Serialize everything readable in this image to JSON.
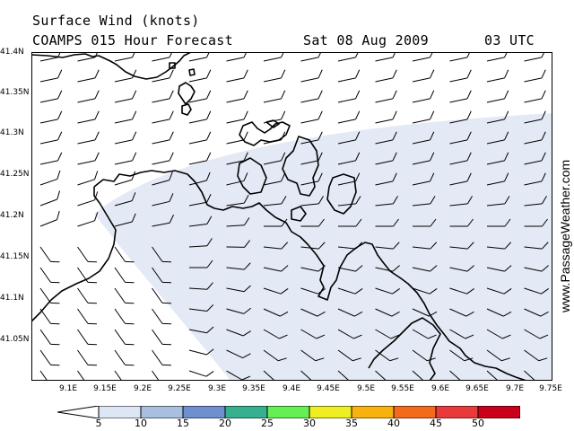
{
  "header": {
    "title": "Surface Wind (knots)",
    "model": "COAMPS 015 Hour Forecast",
    "date": "Sat 08 Aug 2009",
    "time": "03 UTC"
  },
  "watermark": "www.PassageWeather.com",
  "map": {
    "lat_labels": [
      "41.4N",
      "41.35N",
      "41.3N",
      "41.25N",
      "41.2N",
      "41.15N",
      "41.1N",
      "41.05N"
    ],
    "lon_labels": [
      "9.1E",
      "9.15E",
      "9.2E",
      "9.25E",
      "9.3E",
      "9.35E",
      "9.4E",
      "9.45E",
      "9.5E",
      "9.55E",
      "9.6E",
      "9.65E",
      "9.7E",
      "9.75E"
    ],
    "wind_field": "light winds 0-10 knots, mostly westerly barbs with short feathers",
    "shaded_band_color": "#e3e9f5",
    "land_outline_color": "#000000"
  },
  "legend": {
    "labels": [
      "5",
      "10",
      "15",
      "20",
      "25",
      "30",
      "35",
      "40",
      "45",
      "50"
    ],
    "colors": [
      "#ffffff",
      "#dde6f4",
      "#a9bfe0",
      "#6f90cf",
      "#37b08f",
      "#66ee55",
      "#eeee22",
      "#f7b20f",
      "#f36a1d",
      "#e83a3a",
      "#c8001a",
      "#e01ec9"
    ]
  }
}
